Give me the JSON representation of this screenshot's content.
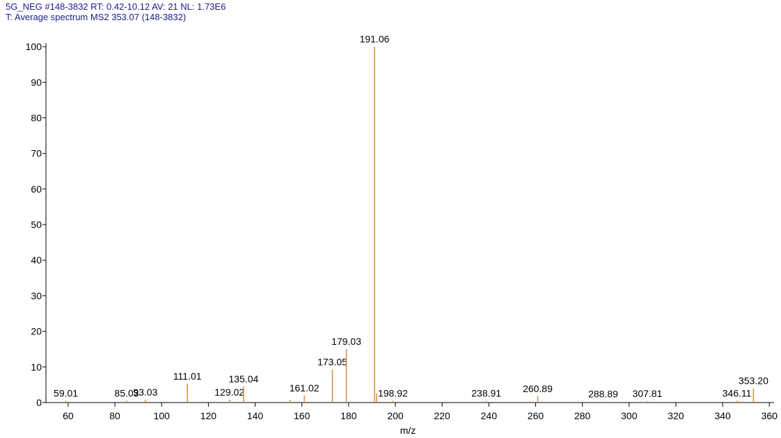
{
  "chart_data": {
    "type": "bar",
    "title": "5G_NEG #148-3832  RT: 0.42-10.12  AV: 21  NL: 1.73E6",
    "subtitle": "T: Average spectrum MS2 353.07 (148-3832)",
    "x_label": "m/z",
    "x": [
      59.01,
      85.03,
      93.03,
      111.01,
      129.02,
      135.04,
      155.0,
      161.02,
      173.05,
      179.03,
      191.06,
      192.0,
      198.92,
      238.91,
      260.89,
      288.89,
      307.81,
      346.11,
      353.2
    ],
    "values": [
      0.5,
      0.5,
      0.8,
      5.3,
      0.8,
      4.5,
      0.8,
      2.0,
      9.3,
      15.0,
      100,
      2.5,
      0.5,
      0.5,
      1.8,
      0.3,
      0.4,
      0.5,
      4.0
    ],
    "peak_labels": [
      "59.01",
      "85.03",
      "93.03",
      "111.01",
      "129.02",
      "135.04",
      null,
      "161.02",
      "173.05",
      "179.03",
      "191.06",
      null,
      "198.92",
      "238.91",
      "260.89",
      "288.89",
      "307.81",
      "346.11",
      "353.20"
    ],
    "color": "#d98a3a",
    "xlim": [
      50.5,
      362
    ],
    "xticks": [
      60,
      80,
      100,
      120,
      140,
      160,
      180,
      200,
      220,
      240,
      260,
      280,
      300,
      320,
      340,
      360
    ],
    "ylim": [
      0,
      101
    ],
    "yticks": [
      0,
      10,
      20,
      30,
      40,
      50,
      60,
      70,
      80,
      90,
      100
    ]
  }
}
